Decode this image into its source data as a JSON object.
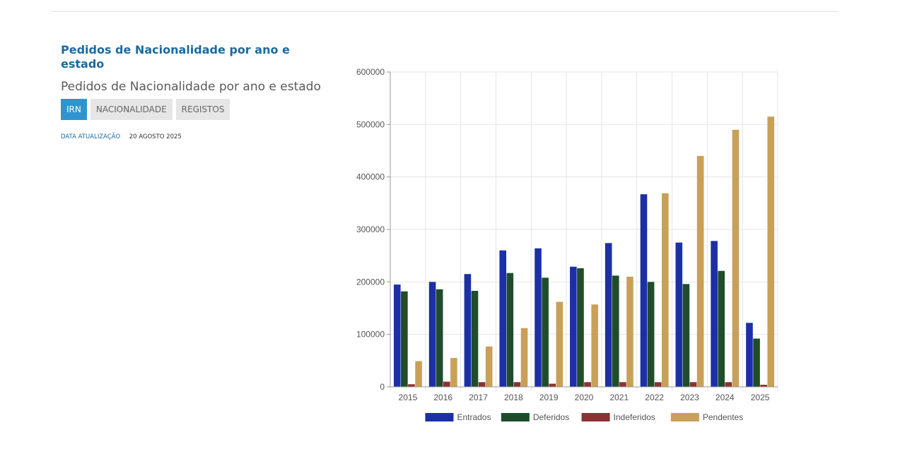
{
  "card": {
    "title": "Pedidos de Nacionalidade por ano e estado",
    "subtitle": "Pedidos de Nacionalidade por ano e estado",
    "tags": [
      "IRN",
      "NACIONALIDADE",
      "REGISTOS"
    ],
    "active_tag": "IRN",
    "update_label": "DATA ATUALIZAÇÃO",
    "update_value": "20 AGOSTO 2025"
  },
  "chart_data": {
    "type": "bar",
    "categories": [
      "2015",
      "2016",
      "2017",
      "2018",
      "2019",
      "2020",
      "2021",
      "2022",
      "2023",
      "2024",
      "2025"
    ],
    "series": [
      {
        "name": "Entrados",
        "color": "#1c2fa6",
        "values": [
          195000,
          200000,
          215000,
          260000,
          264000,
          229000,
          274000,
          367000,
          275000,
          278000,
          122000
        ]
      },
      {
        "name": "Deferidos",
        "color": "#1f4d2b",
        "values": [
          182000,
          186000,
          183000,
          217000,
          208000,
          226000,
          212000,
          200000,
          196000,
          221000,
          92000
        ]
      },
      {
        "name": "Indeferidos",
        "color": "#8b3232",
        "values": [
          5000,
          10000,
          9000,
          9000,
          6000,
          9000,
          9000,
          9000,
          9000,
          9000,
          4000
        ]
      },
      {
        "name": "Pendentes",
        "color": "#c9a05a",
        "values": [
          49000,
          55000,
          77000,
          112000,
          162000,
          157000,
          210000,
          369000,
          440000,
          490000,
          515000
        ]
      }
    ],
    "ylim": [
      0,
      600000
    ],
    "yticks": [
      "0",
      "100000",
      "200000",
      "300000",
      "400000",
      "500000",
      "600000"
    ],
    "grid": true,
    "legend": "bottom-center"
  }
}
